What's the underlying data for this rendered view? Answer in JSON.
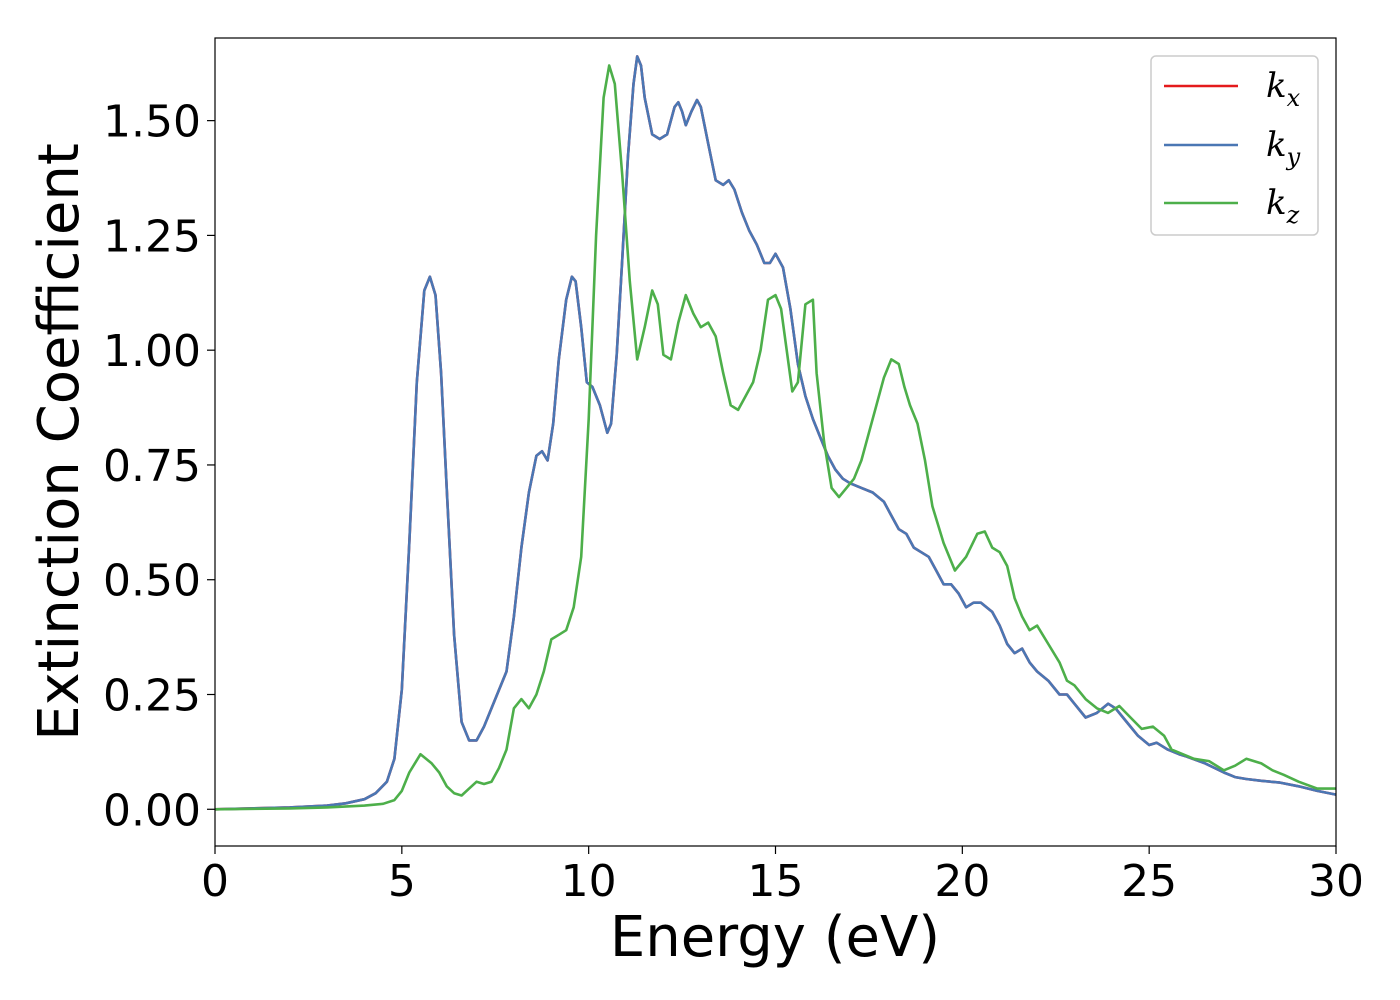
{
  "chart_data": {
    "type": "line",
    "title": "",
    "xlabel": "Energy (eV)",
    "ylabel": "Extinction Coefficient",
    "xlim": [
      0,
      30
    ],
    "ylim": [
      -0.08,
      1.68
    ],
    "xticks": [
      0,
      5,
      10,
      15,
      20,
      25,
      30
    ],
    "xtick_labels": [
      "0",
      "5",
      "10",
      "15",
      "20",
      "25",
      "30"
    ],
    "yticks": [
      0.0,
      0.25,
      0.5,
      0.75,
      1.0,
      1.25,
      1.5
    ],
    "ytick_labels": [
      "0.00",
      "0.25",
      "0.50",
      "0.75",
      "1.00",
      "1.25",
      "1.50"
    ],
    "grid": false,
    "legend_position": "top-right",
    "series": [
      {
        "name": "k_x",
        "legend_main": "k",
        "legend_sub": "x",
        "color": "#e41a1c",
        "x": [
          0,
          2,
          3,
          3.5,
          4.0,
          4.3,
          4.6,
          4.8,
          5.0,
          5.2,
          5.4,
          5.6,
          5.75,
          5.9,
          6.05,
          6.2,
          6.4,
          6.6,
          6.8,
          7.0,
          7.2,
          7.4,
          7.6,
          7.8,
          8.0,
          8.2,
          8.4,
          8.6,
          8.75,
          8.9,
          9.05,
          9.2,
          9.4,
          9.55,
          9.65,
          9.8,
          9.95,
          10.1,
          10.3,
          10.5,
          10.6,
          10.75,
          10.9,
          11.05,
          11.2,
          11.3,
          11.4,
          11.5,
          11.7,
          11.9,
          12.1,
          12.3,
          12.4,
          12.5,
          12.6,
          12.75,
          12.9,
          13.0,
          13.2,
          13.4,
          13.6,
          13.75,
          13.9,
          14.1,
          14.3,
          14.5,
          14.7,
          14.85,
          15.0,
          15.2,
          15.4,
          15.6,
          15.8,
          16.0,
          16.2,
          16.4,
          16.6,
          16.8,
          17.0,
          17.3,
          17.6,
          17.9,
          18.1,
          18.3,
          18.5,
          18.7,
          18.9,
          19.1,
          19.3,
          19.5,
          19.7,
          19.9,
          20.1,
          20.3,
          20.5,
          20.8,
          21.0,
          21.2,
          21.4,
          21.6,
          21.8,
          22.0,
          22.3,
          22.6,
          22.8,
          23.0,
          23.3,
          23.6,
          23.9,
          24.1,
          24.4,
          24.7,
          25.0,
          25.2,
          25.5,
          25.8,
          26.0,
          26.5,
          27.0,
          27.3,
          27.6,
          28.0,
          28.5,
          29.0,
          29.5,
          30.0
        ],
        "y": [
          0.0,
          0.004,
          0.008,
          0.013,
          0.022,
          0.035,
          0.06,
          0.11,
          0.26,
          0.58,
          0.93,
          1.13,
          1.16,
          1.12,
          0.95,
          0.7,
          0.38,
          0.19,
          0.15,
          0.15,
          0.18,
          0.22,
          0.26,
          0.3,
          0.42,
          0.57,
          0.69,
          0.77,
          0.78,
          0.76,
          0.84,
          0.98,
          1.11,
          1.16,
          1.15,
          1.05,
          0.93,
          0.92,
          0.88,
          0.82,
          0.84,
          0.99,
          1.2,
          1.42,
          1.58,
          1.64,
          1.62,
          1.55,
          1.47,
          1.46,
          1.47,
          1.53,
          1.54,
          1.52,
          1.49,
          1.52,
          1.545,
          1.53,
          1.45,
          1.37,
          1.36,
          1.37,
          1.35,
          1.3,
          1.26,
          1.23,
          1.19,
          1.19,
          1.21,
          1.18,
          1.09,
          0.97,
          0.9,
          0.85,
          0.81,
          0.77,
          0.74,
          0.72,
          0.71,
          0.7,
          0.69,
          0.67,
          0.64,
          0.61,
          0.6,
          0.57,
          0.56,
          0.55,
          0.52,
          0.49,
          0.49,
          0.47,
          0.44,
          0.45,
          0.45,
          0.43,
          0.4,
          0.36,
          0.34,
          0.35,
          0.32,
          0.3,
          0.28,
          0.25,
          0.25,
          0.23,
          0.2,
          0.21,
          0.23,
          0.22,
          0.19,
          0.16,
          0.14,
          0.145,
          0.13,
          0.12,
          0.115,
          0.1,
          0.08,
          0.07,
          0.066,
          0.062,
          0.058,
          0.05,
          0.04,
          0.032
        ]
      },
      {
        "name": "k_y",
        "legend_main": "k",
        "legend_sub": "y",
        "color": "#4a77b4",
        "x": [
          0,
          2,
          3,
          3.5,
          4.0,
          4.3,
          4.6,
          4.8,
          5.0,
          5.2,
          5.4,
          5.6,
          5.75,
          5.9,
          6.05,
          6.2,
          6.4,
          6.6,
          6.8,
          7.0,
          7.2,
          7.4,
          7.6,
          7.8,
          8.0,
          8.2,
          8.4,
          8.6,
          8.75,
          8.9,
          9.05,
          9.2,
          9.4,
          9.55,
          9.65,
          9.8,
          9.95,
          10.1,
          10.3,
          10.5,
          10.6,
          10.75,
          10.9,
          11.05,
          11.2,
          11.3,
          11.4,
          11.5,
          11.7,
          11.9,
          12.1,
          12.3,
          12.4,
          12.5,
          12.6,
          12.75,
          12.9,
          13.0,
          13.2,
          13.4,
          13.6,
          13.75,
          13.9,
          14.1,
          14.3,
          14.5,
          14.7,
          14.85,
          15.0,
          15.2,
          15.4,
          15.6,
          15.8,
          16.0,
          16.2,
          16.4,
          16.6,
          16.8,
          17.0,
          17.3,
          17.6,
          17.9,
          18.1,
          18.3,
          18.5,
          18.7,
          18.9,
          19.1,
          19.3,
          19.5,
          19.7,
          19.9,
          20.1,
          20.3,
          20.5,
          20.8,
          21.0,
          21.2,
          21.4,
          21.6,
          21.8,
          22.0,
          22.3,
          22.6,
          22.8,
          23.0,
          23.3,
          23.6,
          23.9,
          24.1,
          24.4,
          24.7,
          25.0,
          25.2,
          25.5,
          25.8,
          26.0,
          26.5,
          27.0,
          27.3,
          27.6,
          28.0,
          28.5,
          29.0,
          29.5,
          30.0
        ],
        "y": [
          0.0,
          0.004,
          0.008,
          0.013,
          0.022,
          0.035,
          0.06,
          0.11,
          0.26,
          0.58,
          0.93,
          1.13,
          1.16,
          1.12,
          0.95,
          0.7,
          0.38,
          0.19,
          0.15,
          0.15,
          0.18,
          0.22,
          0.26,
          0.3,
          0.42,
          0.57,
          0.69,
          0.77,
          0.78,
          0.76,
          0.84,
          0.98,
          1.11,
          1.16,
          1.15,
          1.05,
          0.93,
          0.92,
          0.88,
          0.82,
          0.84,
          0.99,
          1.2,
          1.42,
          1.58,
          1.64,
          1.62,
          1.55,
          1.47,
          1.46,
          1.47,
          1.53,
          1.54,
          1.52,
          1.49,
          1.52,
          1.545,
          1.53,
          1.45,
          1.37,
          1.36,
          1.37,
          1.35,
          1.3,
          1.26,
          1.23,
          1.19,
          1.19,
          1.21,
          1.18,
          1.09,
          0.97,
          0.9,
          0.85,
          0.81,
          0.77,
          0.74,
          0.72,
          0.71,
          0.7,
          0.69,
          0.67,
          0.64,
          0.61,
          0.6,
          0.57,
          0.56,
          0.55,
          0.52,
          0.49,
          0.49,
          0.47,
          0.44,
          0.45,
          0.45,
          0.43,
          0.4,
          0.36,
          0.34,
          0.35,
          0.32,
          0.3,
          0.28,
          0.25,
          0.25,
          0.23,
          0.2,
          0.21,
          0.23,
          0.22,
          0.19,
          0.16,
          0.14,
          0.145,
          0.13,
          0.12,
          0.115,
          0.1,
          0.08,
          0.07,
          0.066,
          0.062,
          0.058,
          0.05,
          0.04,
          0.032
        ]
      },
      {
        "name": "k_z",
        "legend_main": "k",
        "legend_sub": "z",
        "color": "#4daf4a",
        "x": [
          0,
          2,
          3,
          4.0,
          4.5,
          4.8,
          5.0,
          5.2,
          5.5,
          5.8,
          6.0,
          6.2,
          6.4,
          6.6,
          6.8,
          7.0,
          7.2,
          7.4,
          7.6,
          7.8,
          8.0,
          8.2,
          8.4,
          8.6,
          8.8,
          9.0,
          9.2,
          9.4,
          9.6,
          9.8,
          10.0,
          10.2,
          10.4,
          10.55,
          10.7,
          10.9,
          11.1,
          11.3,
          11.5,
          11.7,
          11.85,
          12.0,
          12.2,
          12.4,
          12.6,
          12.8,
          13.0,
          13.2,
          13.4,
          13.6,
          13.8,
          14.0,
          14.2,
          14.4,
          14.6,
          14.8,
          15.0,
          15.15,
          15.3,
          15.45,
          15.6,
          15.8,
          16.0,
          16.1,
          16.3,
          16.5,
          16.7,
          16.9,
          17.1,
          17.3,
          17.5,
          17.7,
          17.9,
          18.1,
          18.3,
          18.45,
          18.6,
          18.8,
          19.0,
          19.2,
          19.5,
          19.8,
          20.1,
          20.4,
          20.6,
          20.8,
          21.0,
          21.2,
          21.4,
          21.6,
          21.8,
          22.0,
          22.3,
          22.6,
          22.8,
          23.0,
          23.3,
          23.6,
          23.9,
          24.2,
          24.5,
          24.8,
          25.1,
          25.4,
          25.6,
          25.9,
          26.2,
          26.6,
          27.0,
          27.3,
          27.6,
          28.0,
          28.3,
          28.6,
          29.0,
          29.5,
          30.0
        ],
        "y": [
          0.0,
          0.002,
          0.004,
          0.008,
          0.012,
          0.02,
          0.04,
          0.08,
          0.12,
          0.1,
          0.08,
          0.05,
          0.035,
          0.03,
          0.045,
          0.06,
          0.055,
          0.06,
          0.09,
          0.13,
          0.22,
          0.24,
          0.22,
          0.25,
          0.3,
          0.37,
          0.38,
          0.39,
          0.44,
          0.55,
          0.85,
          1.25,
          1.55,
          1.62,
          1.58,
          1.38,
          1.15,
          0.98,
          1.05,
          1.13,
          1.1,
          0.99,
          0.98,
          1.06,
          1.12,
          1.08,
          1.05,
          1.06,
          1.03,
          0.95,
          0.88,
          0.87,
          0.9,
          0.93,
          1.0,
          1.11,
          1.12,
          1.09,
          1.0,
          0.91,
          0.93,
          1.1,
          1.11,
          0.95,
          0.8,
          0.7,
          0.68,
          0.7,
          0.72,
          0.76,
          0.82,
          0.88,
          0.94,
          0.98,
          0.97,
          0.92,
          0.88,
          0.84,
          0.76,
          0.66,
          0.58,
          0.52,
          0.55,
          0.6,
          0.605,
          0.57,
          0.56,
          0.53,
          0.46,
          0.42,
          0.39,
          0.4,
          0.36,
          0.32,
          0.28,
          0.27,
          0.24,
          0.22,
          0.21,
          0.225,
          0.2,
          0.175,
          0.18,
          0.16,
          0.13,
          0.12,
          0.11,
          0.105,
          0.085,
          0.095,
          0.11,
          0.1,
          0.085,
          0.075,
          0.06,
          0.045,
          0.045
        ]
      }
    ]
  }
}
